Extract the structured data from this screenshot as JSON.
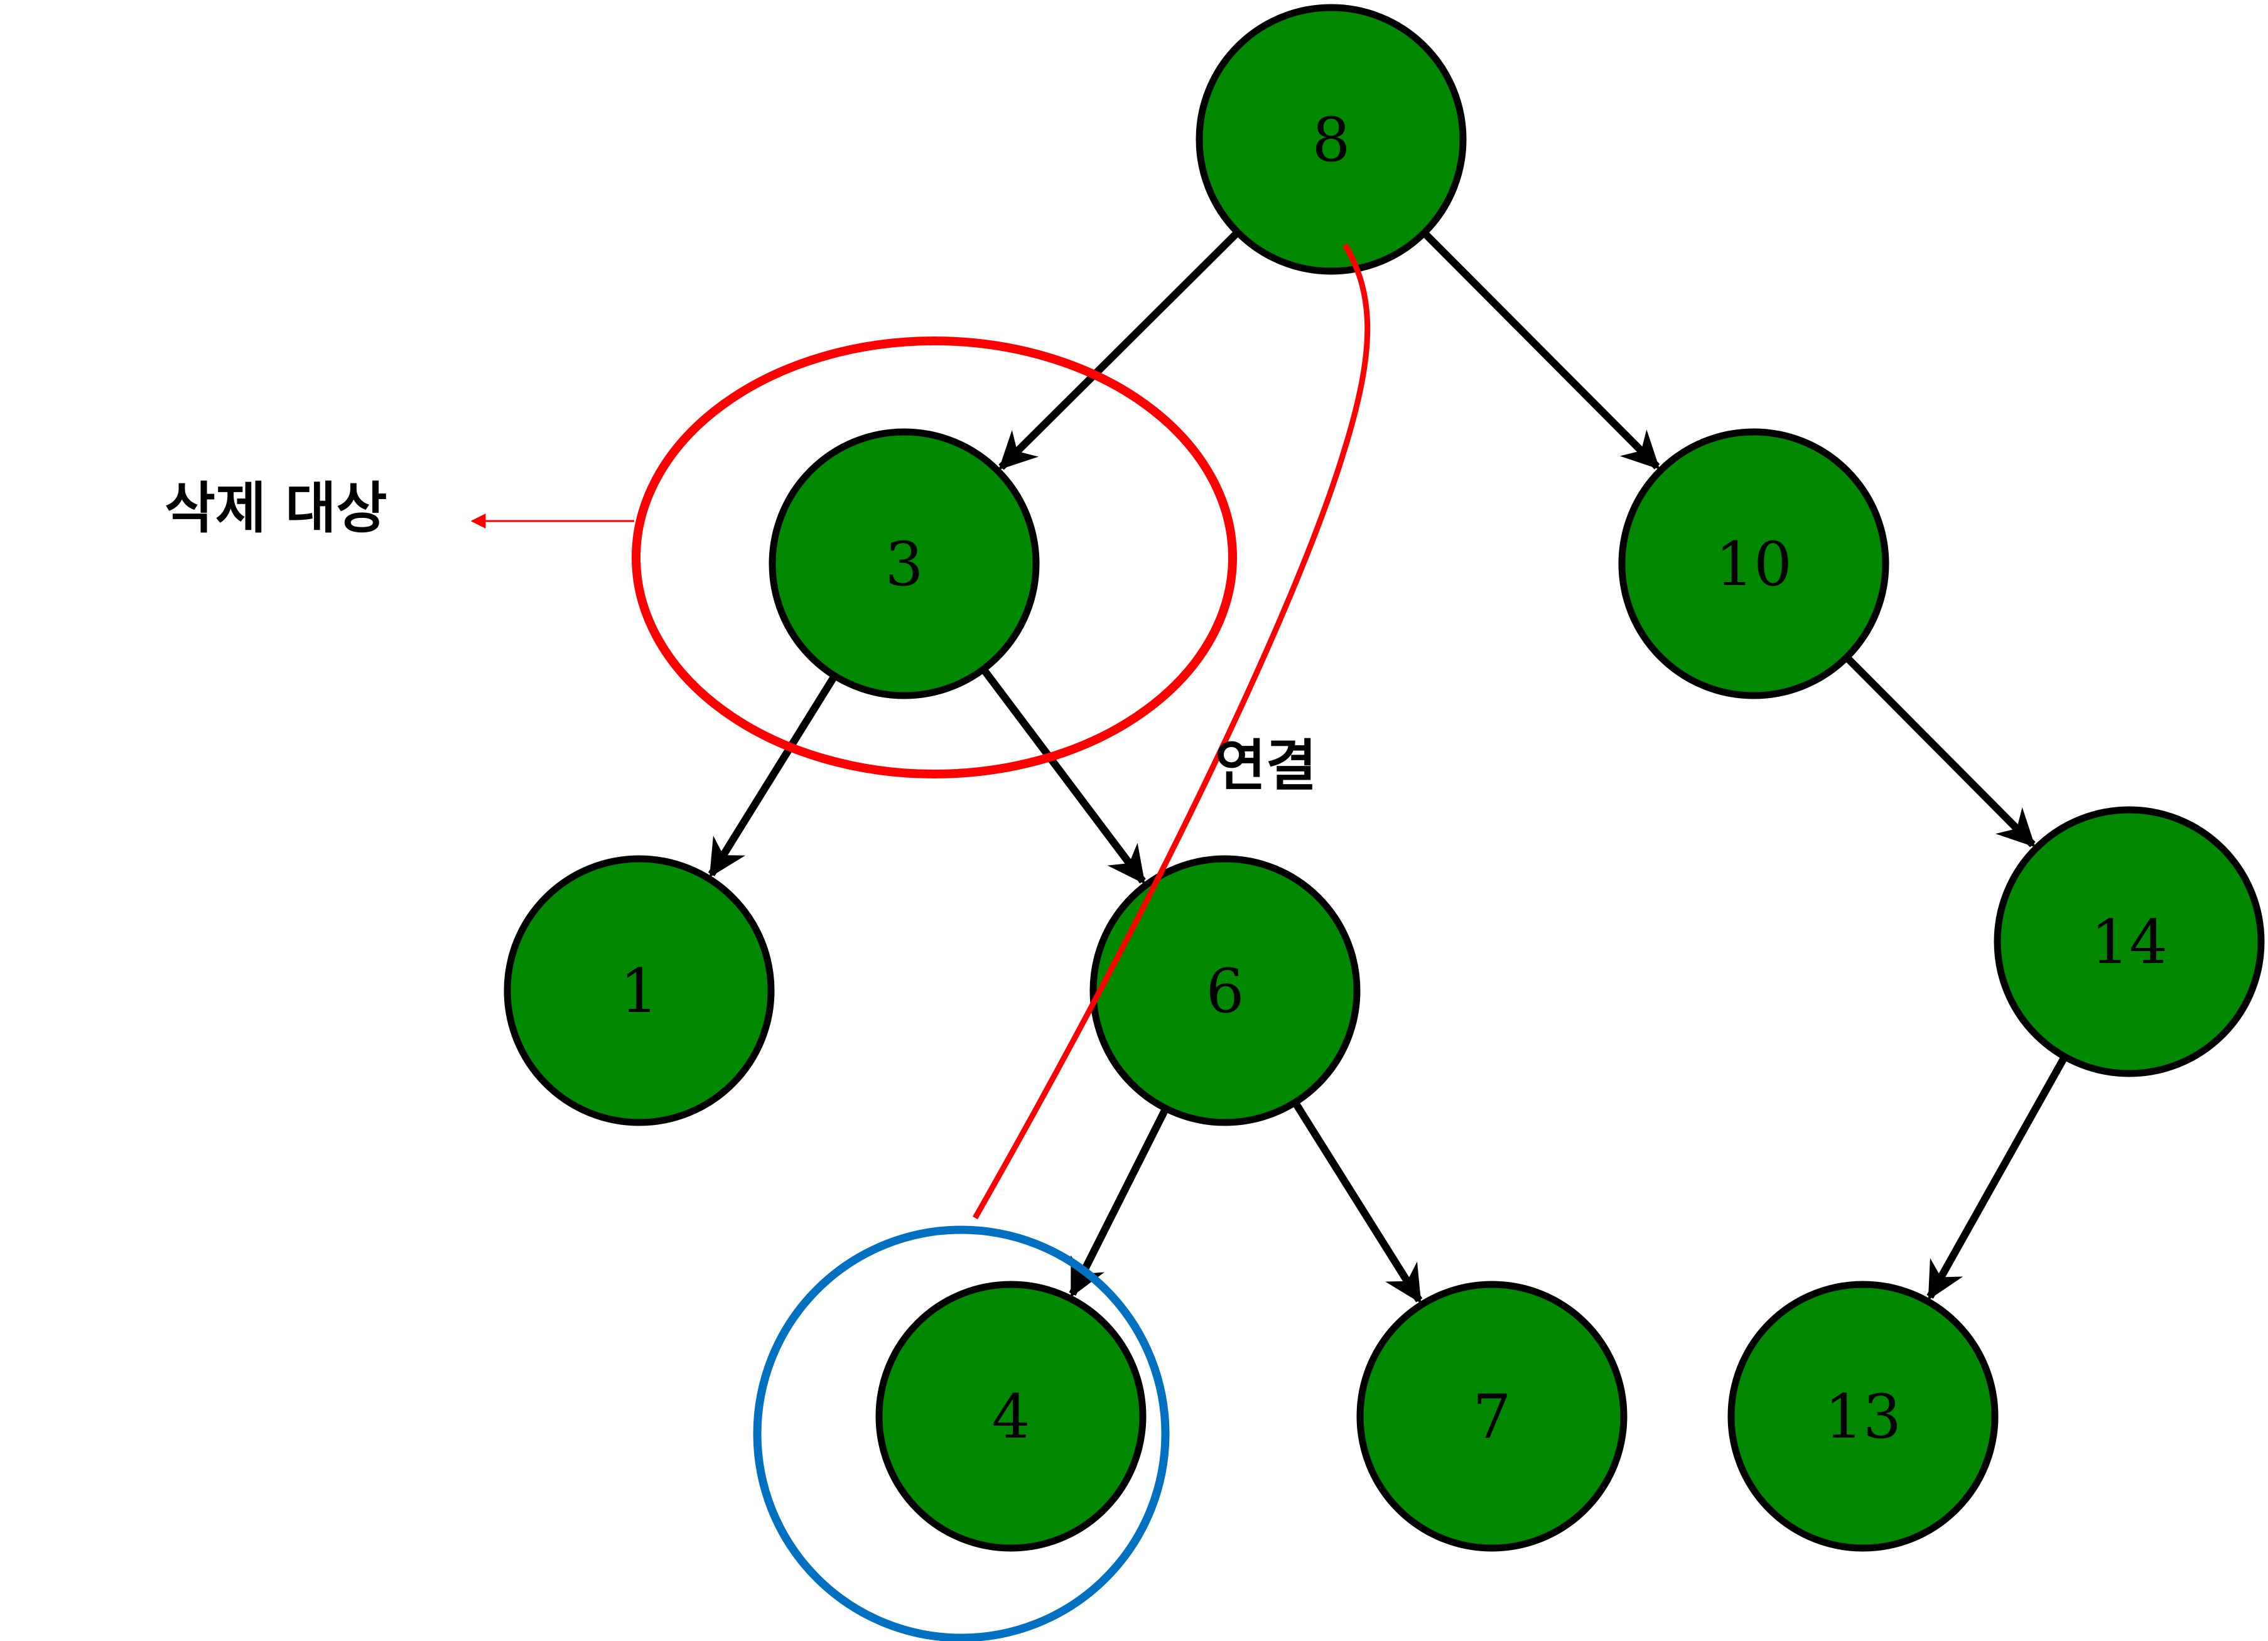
{
  "colors": {
    "node_fill": "#008800",
    "node_stroke": "#000000",
    "edge": "#000000",
    "delete_highlight": "#ff0000",
    "replacement_highlight": "#0070c0"
  },
  "tree": {
    "nodes": [
      {
        "id": "n8",
        "label": "8"
      },
      {
        "id": "n3",
        "label": "3"
      },
      {
        "id": "n10",
        "label": "10"
      },
      {
        "id": "n1",
        "label": "1"
      },
      {
        "id": "n6",
        "label": "6"
      },
      {
        "id": "n14",
        "label": "14"
      },
      {
        "id": "n4",
        "label": "4"
      },
      {
        "id": "n7",
        "label": "7"
      },
      {
        "id": "n13",
        "label": "13"
      }
    ],
    "edges": [
      {
        "from": "n8",
        "to": "n3"
      },
      {
        "from": "n8",
        "to": "n10"
      },
      {
        "from": "n3",
        "to": "n1"
      },
      {
        "from": "n3",
        "to": "n6"
      },
      {
        "from": "n10",
        "to": "n14"
      },
      {
        "from": "n6",
        "to": "n4"
      },
      {
        "from": "n6",
        "to": "n7"
      },
      {
        "from": "n14",
        "to": "n13"
      }
    ]
  },
  "annotations": {
    "delete_target": {
      "label": "삭제 대상",
      "node": "n3"
    },
    "connect": {
      "label": "연결",
      "from": "n8",
      "to": "n4"
    },
    "replacement": {
      "node": "n4"
    }
  }
}
